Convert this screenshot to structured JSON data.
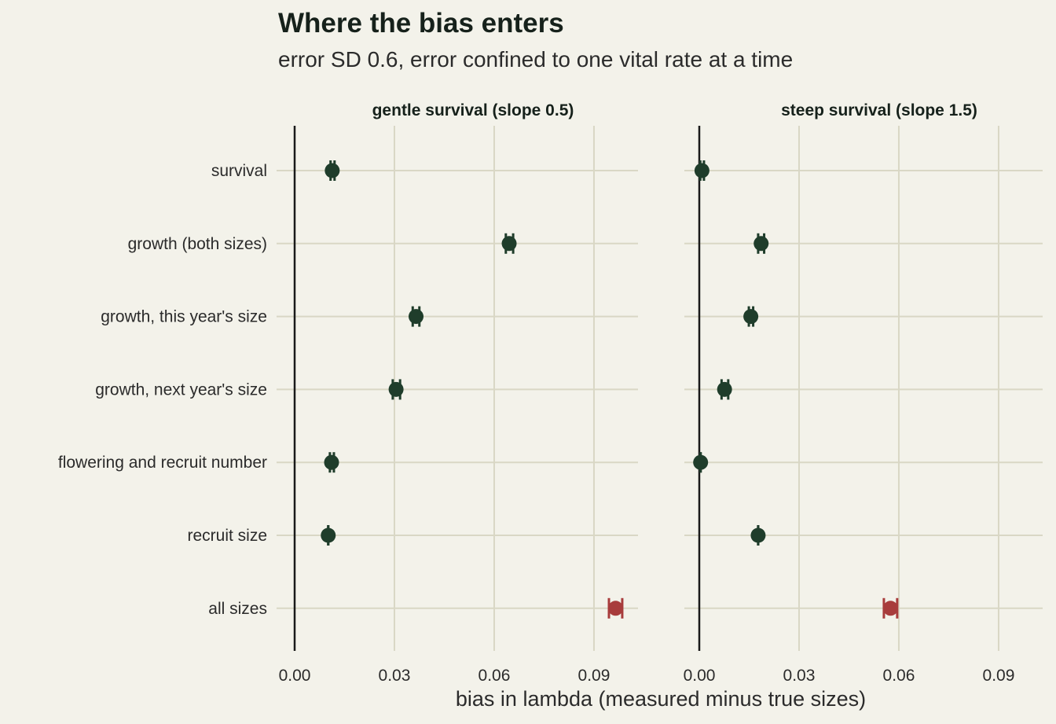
{
  "title": "Where the bias enters",
  "subtitle": "error SD 0.6, error confined to one vital rate at a time",
  "chart_data": {
    "type": "scatter",
    "xlabel": "bias in lambda (measured minus true sizes)",
    "ylabel": "",
    "xlim": [
      0,
      0.1
    ],
    "xticks": [
      0.0,
      0.03,
      0.06,
      0.09
    ],
    "xtick_labels": [
      "0.00",
      "0.03",
      "0.06",
      "0.09"
    ],
    "categories": [
      "survival",
      "growth (both sizes)",
      "growth, this year's size",
      "growth, next year's size",
      "flowering and recruit number",
      "recruit size",
      "all sizes"
    ],
    "grid": true,
    "legend": "none",
    "colors": {
      "default": "#1f3d2b",
      "highlight": "#a83c3c",
      "grid": "#d9d7c5",
      "zero_line": "#1a1a1a"
    },
    "panels": [
      {
        "name": "gentle survival (slope 0.5)",
        "points": [
          {
            "category": "survival",
            "value": 0.0113,
            "low": 0.0108,
            "high": 0.012
          },
          {
            "category": "growth (both sizes)",
            "value": 0.0645,
            "low": 0.0635,
            "high": 0.0657
          },
          {
            "category": "growth, this year's size",
            "value": 0.0365,
            "low": 0.0355,
            "high": 0.0375
          },
          {
            "category": "growth, next year's size",
            "value": 0.0305,
            "low": 0.0295,
            "high": 0.0317
          },
          {
            "category": "flowering and recruit number",
            "value": 0.0111,
            "low": 0.0106,
            "high": 0.0118
          },
          {
            "category": "recruit size",
            "value": 0.0101,
            "low": 0.0101,
            "high": 0.0101
          },
          {
            "category": "all sizes",
            "value": 0.0965,
            "low": 0.0945,
            "high": 0.0985
          }
        ]
      },
      {
        "name": "steep survival (slope 1.5)",
        "points": [
          {
            "category": "survival",
            "value": 0.0008,
            "low": 0.0003,
            "high": 0.0014
          },
          {
            "category": "growth (both sizes)",
            "value": 0.0186,
            "low": 0.0177,
            "high": 0.0195
          },
          {
            "category": "growth, this year's size",
            "value": 0.0155,
            "low": 0.0149,
            "high": 0.0162
          },
          {
            "category": "growth, next year's size",
            "value": 0.0076,
            "low": 0.0067,
            "high": 0.0087
          },
          {
            "category": "flowering and recruit number",
            "value": 0.0004,
            "low": 0.0004,
            "high": 0.0004
          },
          {
            "category": "recruit size",
            "value": 0.0177,
            "low": 0.0177,
            "high": 0.0177
          },
          {
            "category": "all sizes",
            "value": 0.0575,
            "low": 0.0555,
            "high": 0.0595
          }
        ]
      }
    ]
  }
}
